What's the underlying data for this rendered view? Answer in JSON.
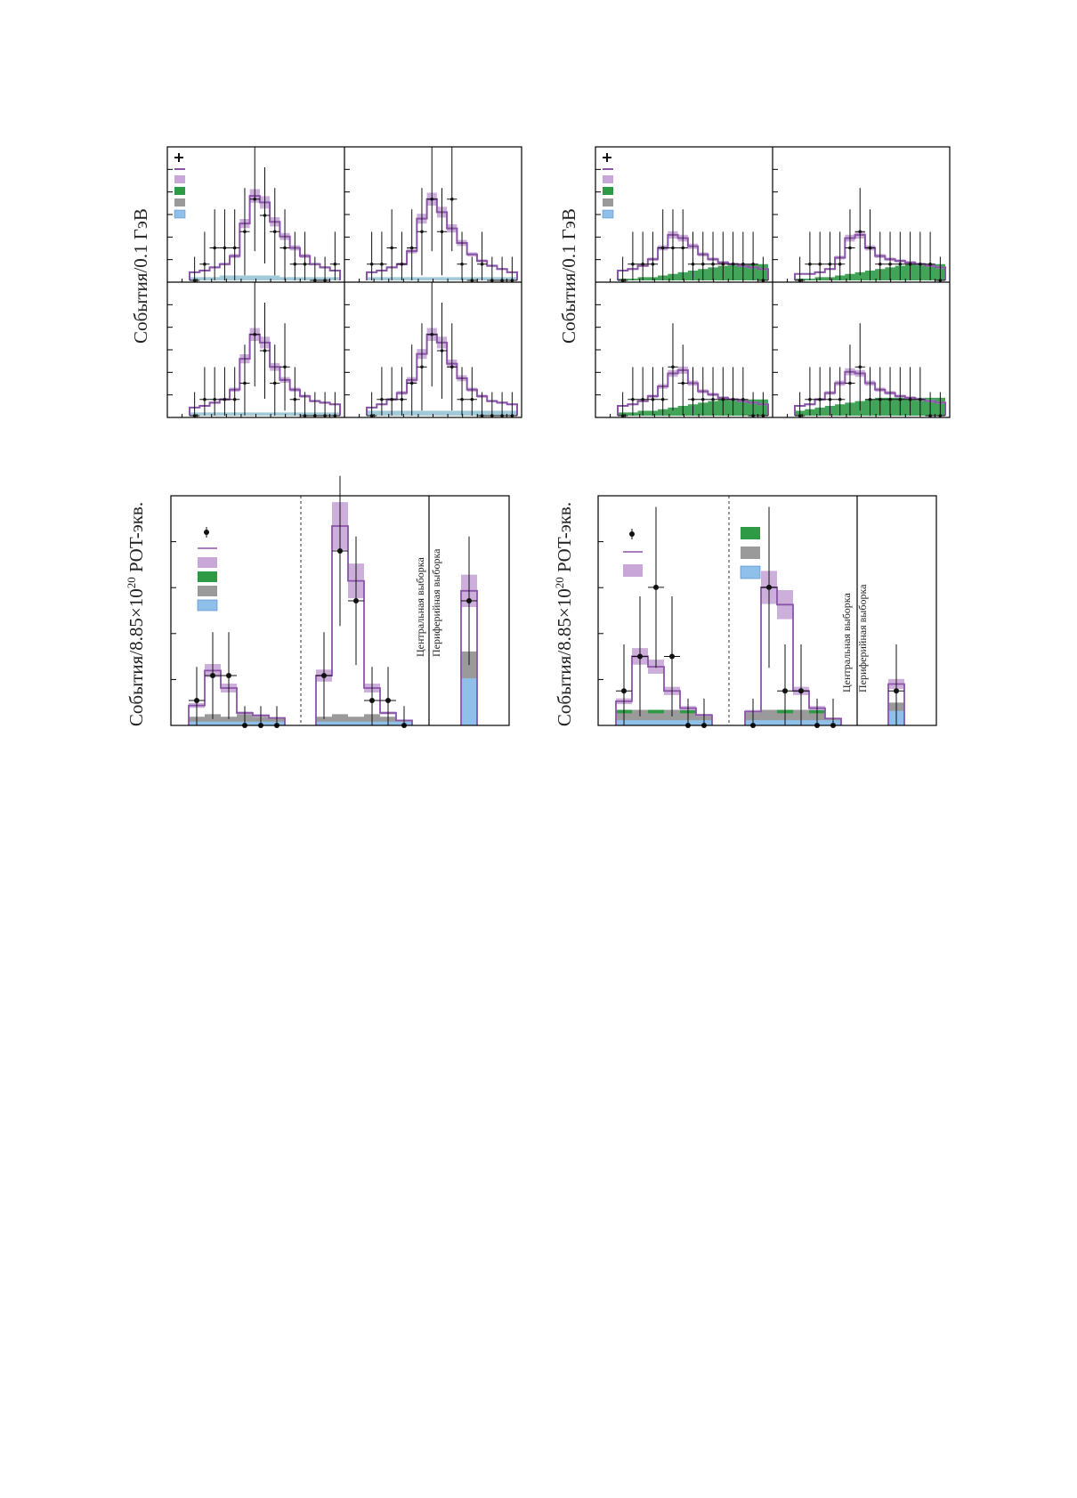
{
  "labels": {
    "top_ylabel": "События/0.1 ГэВ",
    "bottom_ylabel_prefix": "События/8.85×10",
    "bottom_ylabel_exp": "20",
    "bottom_ylabel_suffix": " POT-экв.",
    "core_sample": "Центральная выборка",
    "peripheral_sample": "Периферийная выборка"
  },
  "colors": {
    "data": "#111111",
    "prediction_line": "#8a54a8",
    "syst_band": "#c8a6d8",
    "green_bkg": "#2e9a46",
    "gray_bkg": "#9a9a9a",
    "blue_bkg": "#8fc0ea"
  },
  "chart_data": [
    {
      "type": "histogram",
      "panel": "top-left",
      "ylabel": "События/0.1 ГэВ",
      "subpanels": [
        {
          "prediction": [
            0.5,
            0.6,
            0.8,
            1.0,
            1.5,
            3.5,
            5.2,
            4.8,
            3.6,
            2.7,
            2.0,
            1.5,
            1.0,
            0.8,
            0.6
          ],
          "data": [
            0,
            1,
            2,
            2,
            2,
            3,
            5,
            4,
            3,
            2,
            1,
            1,
            0,
            0,
            1
          ],
          "background": [
            0.2,
            0.2,
            0.2,
            0.3,
            0.3,
            0.3,
            0.3,
            0.3,
            0.3,
            0.2,
            0.2,
            0.2,
            0.2,
            0.2,
            0.2
          ]
        },
        {
          "prediction": [
            0.5,
            0.6,
            0.8,
            1.0,
            1.8,
            3.8,
            5.0,
            4.2,
            3.2,
            2.3,
            1.6,
            1.2,
            0.9,
            0.7,
            0.5
          ],
          "data": [
            1,
            1,
            2,
            1,
            2,
            3,
            5,
            3,
            5,
            1,
            0,
            1,
            0,
            0,
            0
          ],
          "background": [
            0.2,
            0.2,
            0.2,
            0.2,
            0.2,
            0.2,
            0.2,
            0.2,
            0.2,
            0.2,
            0.2,
            0.2,
            0.2,
            0.2,
            0.2
          ]
        },
        {
          "prediction": [
            0.5,
            0.6,
            0.8,
            1.0,
            1.6,
            3.5,
            5.0,
            4.5,
            3.0,
            2.2,
            1.6,
            1.2,
            0.9,
            0.8,
            0.7
          ],
          "data": [
            0,
            1,
            1,
            1,
            1,
            2,
            5,
            4,
            2,
            3,
            1,
            0,
            0,
            0,
            0
          ],
          "background": [
            0.2,
            0.2,
            0.2,
            0.2,
            0.2,
            0.2,
            0.2,
            0.2,
            0.2,
            0.2,
            0.2,
            0.2,
            0.2,
            0.2,
            0.2
          ]
        },
        {
          "prediction": [
            0.5,
            0.7,
            1.0,
            1.4,
            2.2,
            3.8,
            5.0,
            4.5,
            3.2,
            2.3,
            1.6,
            1.2,
            0.9,
            0.8,
            0.7
          ],
          "data": [
            0,
            1,
            1,
            1,
            2,
            3,
            5,
            4,
            3,
            1,
            1,
            0,
            0,
            0,
            0
          ],
          "background": [
            0.3,
            0.3,
            0.3,
            0.3,
            0.3,
            0.3,
            0.3,
            0.3,
            0.3,
            0.3,
            0.3,
            0.3,
            0.3,
            0.3,
            0.3
          ]
        }
      ]
    },
    {
      "type": "histogram",
      "panel": "top-right",
      "ylabel": "События/0.1 ГэВ",
      "subpanels": [
        {
          "prediction": [
            0.6,
            0.7,
            0.9,
            1.3,
            2.0,
            2.8,
            2.6,
            2.1,
            1.6,
            1.3,
            1.1,
            1.0,
            0.9,
            0.8,
            0.7
          ],
          "data": [
            0,
            1,
            1,
            1,
            2,
            2,
            2,
            1,
            1,
            1,
            1,
            1,
            1,
            1,
            0
          ],
          "background": [
            0.1,
            0.1,
            0.2,
            0.2,
            0.3,
            0.4,
            0.5,
            0.6,
            0.7,
            0.8,
            0.9,
            1.0,
            1.0,
            1.0,
            1.0
          ]
        },
        {
          "prediction": [
            0.4,
            0.4,
            0.5,
            0.7,
            1.4,
            2.6,
            2.8,
            2.0,
            1.5,
            1.3,
            1.2,
            1.1,
            1.0,
            0.9,
            0.8
          ],
          "data": [
            0,
            1,
            1,
            1,
            1,
            2,
            3,
            2,
            1,
            1,
            1,
            1,
            1,
            1,
            0
          ],
          "background": [
            0.1,
            0.1,
            0.2,
            0.2,
            0.3,
            0.4,
            0.5,
            0.6,
            0.7,
            0.8,
            0.9,
            1.0,
            1.0,
            1.0,
            1.0
          ]
        },
        {
          "prediction": [
            0.6,
            0.7,
            0.9,
            1.2,
            1.8,
            2.6,
            2.8,
            2.0,
            1.5,
            1.3,
            1.1,
            1.0,
            0.9,
            0.8,
            0.7
          ],
          "data": [
            0,
            1,
            1,
            1,
            1,
            3,
            2,
            1,
            1,
            1,
            1,
            1,
            1,
            0,
            0
          ],
          "background": [
            0.2,
            0.2,
            0.3,
            0.3,
            0.4,
            0.5,
            0.6,
            0.7,
            0.8,
            0.9,
            1.0,
            1.0,
            1.0,
            1.0,
            1.0
          ]
        },
        {
          "prediction": [
            0.6,
            0.7,
            1.0,
            1.4,
            2.0,
            2.7,
            2.6,
            2.0,
            1.6,
            1.4,
            1.2,
            1.1,
            1.0,
            0.9,
            0.8
          ],
          "data": [
            0,
            1,
            1,
            1,
            1,
            2,
            3,
            1,
            1,
            1,
            1,
            1,
            1,
            0,
            0
          ],
          "background": [
            0.3,
            0.4,
            0.5,
            0.6,
            0.7,
            0.8,
            0.9,
            1.0,
            1.1,
            1.1,
            1.1,
            1.1,
            1.1,
            1.1,
            1.1
          ]
        }
      ]
    },
    {
      "type": "histogram",
      "panel": "bottom-left",
      "ylabel": "События/8.85×10^20 POT-экв.",
      "regions": [
        {
          "prediction": [
            0.8,
            2.2,
            1.5,
            0.5,
            0.4,
            0.3
          ],
          "data": [
            1,
            2,
            2,
            0,
            0,
            0
          ]
        },
        {
          "prediction": [
            2.0,
            8.0,
            5.8,
            1.5,
            0.5,
            0.2
          ],
          "data": [
            2,
            7,
            5,
            1,
            1,
            0
          ]
        },
        {
          "prediction": [
            5.4
          ],
          "data": [
            5
          ]
        }
      ],
      "annotations": [
        "Центральная выборка",
        "Периферийная выборка"
      ]
    },
    {
      "type": "histogram",
      "panel": "bottom-right",
      "ylabel": "События/8.85×10^20 POT-экв.",
      "regions": [
        {
          "prediction": [
            0.7,
            2.0,
            1.7,
            1.0,
            0.5,
            0.3
          ],
          "data": [
            1,
            2,
            4,
            2,
            0,
            0
          ]
        },
        {
          "prediction": [
            0.4,
            4.0,
            3.5,
            1.0,
            0.5,
            0.2
          ],
          "data": [
            0,
            4,
            1,
            1,
            0,
            0
          ]
        },
        {
          "prediction": [
            1.2
          ],
          "data": [
            1
          ]
        }
      ],
      "annotations": [
        "Центральная выборка",
        "Периферийная выборка"
      ]
    }
  ]
}
